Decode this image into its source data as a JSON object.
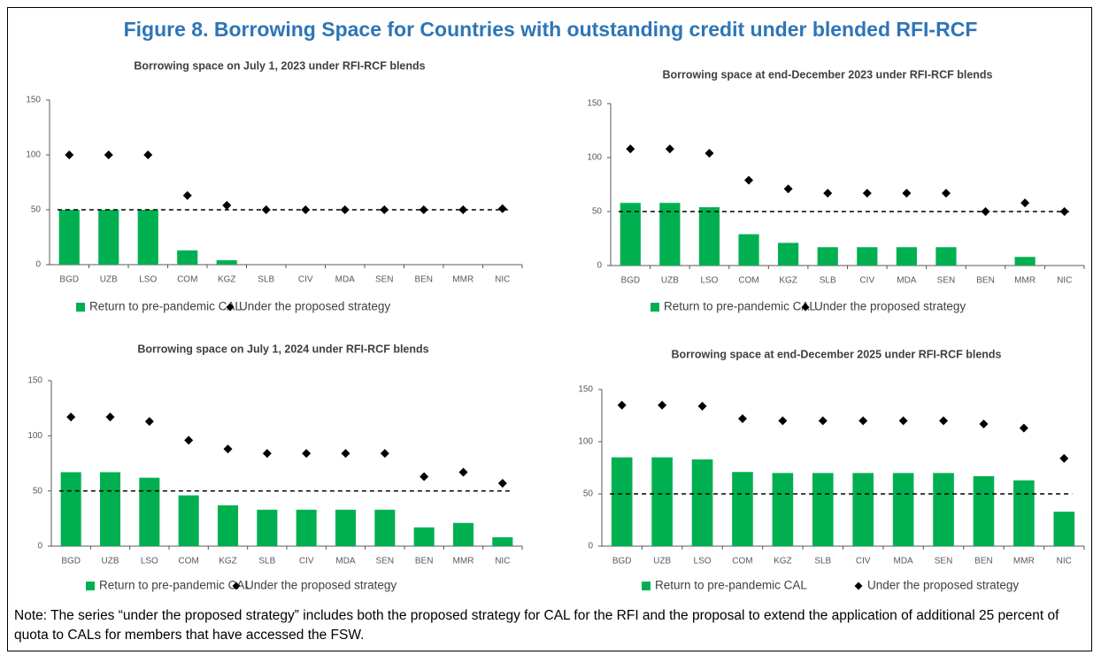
{
  "title": "Figure 8. Borrowing Space for Countries with outstanding credit under blended RFI-RCF",
  "note": "Note: The series “under the proposed strategy” includes both the proposed strategy for CAL for the RFI and the proposal to extend the application of additional 25 percent of quota to CALs for members that have accessed the FSW.",
  "chart_data": [
    {
      "type": "combo",
      "title": "Borrowing space on July 1, 2023 under RFI-RCF blends",
      "categories": [
        "BGD",
        "UZB",
        "LSO",
        "COM",
        "KGZ",
        "SLB",
        "CIV",
        "MDA",
        "SEN",
        "BEN",
        "MMR",
        "NIC"
      ],
      "series": [
        {
          "name": "Return to pre-pandemic CAL",
          "type": "bar",
          "color": "#00b050",
          "values": [
            50,
            50,
            50,
            13,
            4,
            0,
            0,
            0,
            0,
            0,
            0,
            0
          ]
        },
        {
          "name": "Under the proposed strategy",
          "type": "scatter",
          "color": "#000000",
          "values": [
            100,
            100,
            100,
            63,
            54,
            50,
            50,
            50,
            50,
            50,
            50,
            51
          ]
        }
      ],
      "reference_line": 50,
      "ylim": [
        0,
        150
      ],
      "yticks": [
        0,
        50,
        100,
        150
      ]
    },
    {
      "type": "combo",
      "title": "Borrowing space at end-December 2023 under RFI-RCF blends",
      "categories": [
        "BGD",
        "UZB",
        "LSO",
        "COM",
        "KGZ",
        "SLB",
        "CIV",
        "MDA",
        "SEN",
        "BEN",
        "MMR",
        "NIC"
      ],
      "series": [
        {
          "name": "Return to pre-pandemic CAL",
          "type": "bar",
          "color": "#00b050",
          "values": [
            58,
            58,
            54,
            29,
            21,
            17,
            17,
            17,
            17,
            0,
            8,
            0
          ]
        },
        {
          "name": "Under the proposed strategy",
          "type": "scatter",
          "color": "#000000",
          "values": [
            108,
            108,
            104,
            79,
            71,
            67,
            67,
            67,
            67,
            50,
            58,
            50
          ]
        }
      ],
      "reference_line": 50,
      "ylim": [
        0,
        150
      ],
      "yticks": [
        0,
        50,
        100,
        150
      ]
    },
    {
      "type": "combo",
      "title": "Borrowing space on July 1, 2024 under RFI-RCF blends",
      "categories": [
        "BGD",
        "UZB",
        "LSO",
        "COM",
        "KGZ",
        "SLB",
        "CIV",
        "MDA",
        "SEN",
        "BEN",
        "MMR",
        "NIC"
      ],
      "series": [
        {
          "name": "Return to pre-pandemic CAL",
          "type": "bar",
          "color": "#00b050",
          "values": [
            67,
            67,
            62,
            46,
            37,
            33,
            33,
            33,
            33,
            17,
            21,
            8
          ]
        },
        {
          "name": "Under the proposed strategy",
          "type": "scatter",
          "color": "#000000",
          "values": [
            117,
            117,
            113,
            96,
            88,
            84,
            84,
            84,
            84,
            63,
            67,
            57
          ]
        }
      ],
      "reference_line": 50,
      "ylim": [
        0,
        150
      ],
      "yticks": [
        0,
        50,
        100,
        150
      ]
    },
    {
      "type": "combo",
      "title": "Borrowing space at end-December 2025 under RFI-RCF blends",
      "categories": [
        "BGD",
        "UZB",
        "LSO",
        "COM",
        "KGZ",
        "SLB",
        "CIV",
        "MDA",
        "SEN",
        "BEN",
        "MMR",
        "NIC"
      ],
      "series": [
        {
          "name": "Return to pre-pandemic CAL",
          "type": "bar",
          "color": "#00b050",
          "values": [
            85,
            85,
            83,
            71,
            70,
            70,
            70,
            70,
            70,
            67,
            63,
            33
          ]
        },
        {
          "name": "Under the proposed strategy",
          "type": "scatter",
          "color": "#000000",
          "values": [
            135,
            135,
            134,
            122,
            120,
            120,
            120,
            120,
            120,
            117,
            113,
            84
          ]
        }
      ],
      "reference_line": 50,
      "ylim": [
        0,
        150
      ],
      "yticks": [
        0,
        50,
        100,
        150
      ]
    }
  ]
}
